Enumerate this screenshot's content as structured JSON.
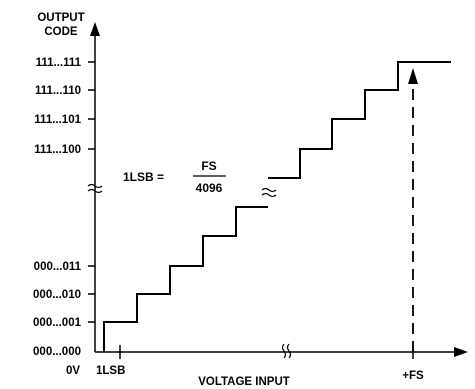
{
  "title_lines": [
    "OUTPUT",
    "CODE"
  ],
  "x_axis_label": "VOLTAGE INPUT",
  "x_ticks": {
    "origin": "0V",
    "lsb": "1LSB",
    "full_scale": "+FS"
  },
  "y_labels_top": [
    "111...111",
    "111...110",
    "111...101",
    "111...100"
  ],
  "y_labels_bottom": [
    "000...011",
    "000...010",
    "000...001",
    "000...000"
  ],
  "formula": {
    "lhs": "1LSB =",
    "numerator": "FS",
    "denominator": "4096"
  },
  "colors": {
    "ink": "#000000",
    "background": "#ffffff"
  }
}
